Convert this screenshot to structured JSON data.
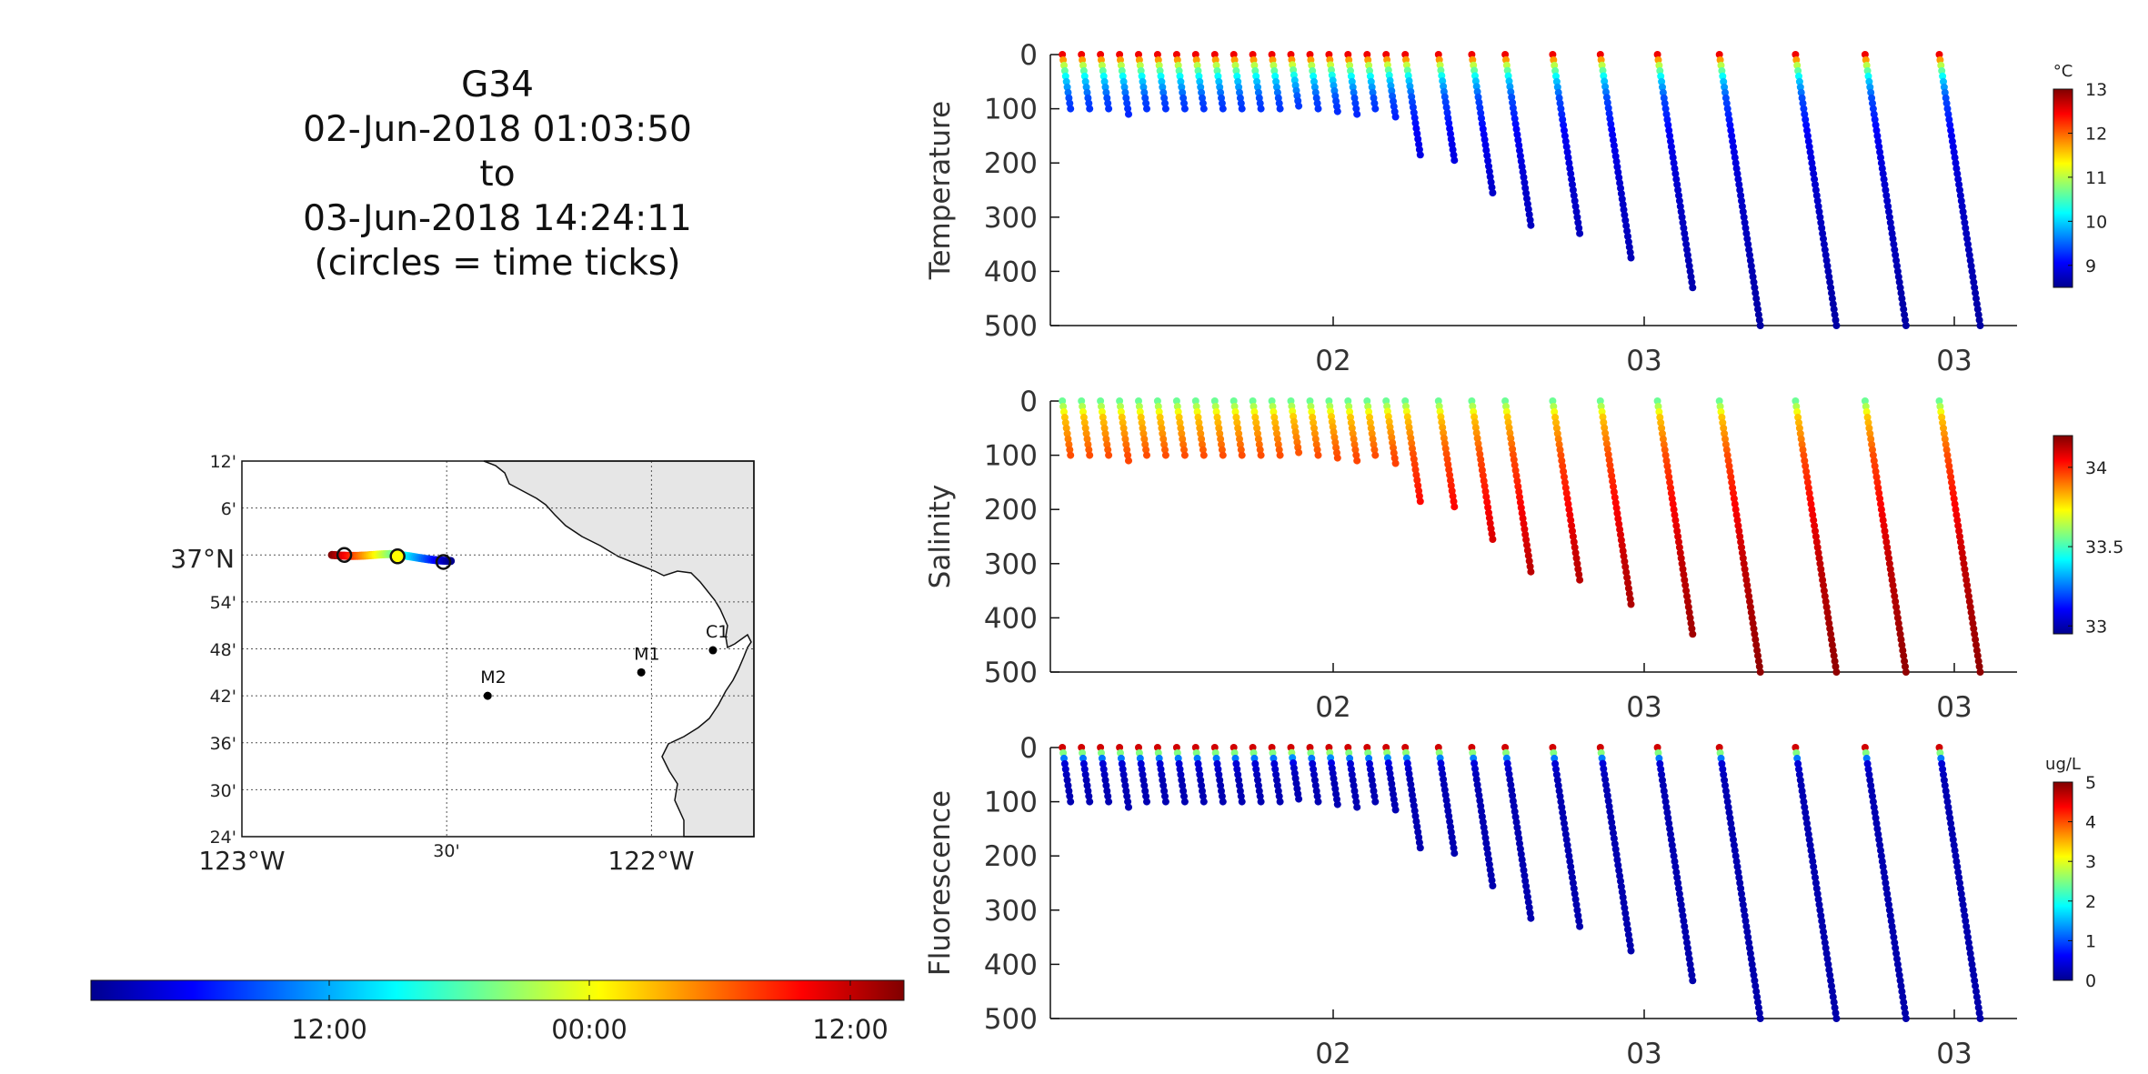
{
  "title": {
    "lines": [
      "G34",
      "02-Jun-2018 01:03:50",
      "to",
      "03-Jun-2018 14:24:11",
      "(circles = time ticks)"
    ]
  },
  "colors": {
    "jet": [
      "#00008f",
      "#0000ff",
      "#0080ff",
      "#00ffff",
      "#80ff80",
      "#ffff00",
      "#ff8000",
      "#ff0000",
      "#800000"
    ],
    "land": "#e6e6e6",
    "marker": "#000000"
  },
  "map": {
    "lat_tick_labels": [
      "12'",
      "6'",
      "37°N",
      "54'",
      "48'",
      "42'",
      "36'",
      "30'",
      "24'"
    ],
    "lon_tick_labels": [
      "123°W",
      "30'",
      "122°W"
    ],
    "lat_range": [
      36.4,
      37.2
    ],
    "lon_range": [
      -123.0,
      -121.75
    ],
    "grid": "dotted",
    "stations": [
      {
        "name": "C1",
        "lon": -121.85,
        "lat": 36.797
      },
      {
        "name": "M1",
        "lon": -122.025,
        "lat": 36.75
      },
      {
        "name": "M2",
        "lon": -122.4,
        "lat": 36.7
      }
    ],
    "time_tick_circles": [
      {
        "lon": -122.75,
        "lat": 37.0
      },
      {
        "lon": -122.62,
        "lat": 36.997
      },
      {
        "lon": -122.508,
        "lat": 36.985
      }
    ]
  },
  "time_colorbar": {
    "tick_labels": [
      "12:00",
      "00:00",
      "12:00"
    ],
    "colormap": "jet",
    "orientation": "horizontal"
  },
  "chart_data": [
    {
      "type": "scatter",
      "title": "",
      "ylabel": "Temperature",
      "xlabel": "",
      "y_reversed": true,
      "ylim": [
        0,
        500
      ],
      "y_ticks": [
        "0",
        "100",
        "200",
        "300",
        "400",
        "500"
      ],
      "x_tick_labels": [
        "02",
        "03",
        "03"
      ],
      "colorbar": {
        "unit": "°C",
        "range": [
          8.5,
          13
        ],
        "ticks": [
          "13",
          "12",
          "11",
          "10",
          "9"
        ]
      },
      "color_profile": [
        [
          0,
          12.5
        ],
        [
          20,
          11
        ],
        [
          45,
          10
        ],
        [
          80,
          9.4
        ],
        [
          150,
          9
        ],
        [
          250,
          8.8
        ],
        [
          500,
          8.6
        ]
      ]
    },
    {
      "type": "scatter",
      "title": "",
      "ylabel": "Salinity",
      "xlabel": "",
      "y_reversed": true,
      "ylim": [
        0,
        500
      ],
      "y_ticks": [
        "0",
        "100",
        "200",
        "300",
        "400",
        "500"
      ],
      "x_tick_labels": [
        "02",
        "03",
        "03"
      ],
      "colorbar": {
        "unit": "",
        "range": [
          32.95,
          34.2
        ],
        "ticks": [
          "34",
          "33.5",
          "33"
        ]
      },
      "color_profile": [
        [
          0,
          33.55
        ],
        [
          30,
          33.8
        ],
        [
          100,
          33.95
        ],
        [
          200,
          34.05
        ],
        [
          300,
          34.12
        ],
        [
          500,
          34.18
        ]
      ]
    },
    {
      "type": "scatter",
      "title": "",
      "ylabel": "Fluorescence",
      "xlabel": "",
      "y_reversed": true,
      "ylim": [
        0,
        500
      ],
      "y_ticks": [
        "0",
        "100",
        "200",
        "300",
        "400",
        "500"
      ],
      "x_tick_labels": [
        "02",
        "03",
        "03"
      ],
      "colorbar": {
        "unit": "ug/L",
        "range": [
          0,
          5
        ],
        "ticks": [
          "5",
          "4",
          "3",
          "2",
          "1",
          "0"
        ]
      },
      "color_profile": [
        [
          0,
          4.6
        ],
        [
          10,
          2.5
        ],
        [
          20,
          1.2
        ],
        [
          30,
          0.4
        ],
        [
          60,
          0.2
        ],
        [
          500,
          0.15
        ]
      ]
    }
  ],
  "profiles": [
    {
      "t": 0.005,
      "max_depth": 100
    },
    {
      "t": 0.025,
      "max_depth": 100
    },
    {
      "t": 0.045,
      "max_depth": 100
    },
    {
      "t": 0.065,
      "max_depth": 110
    },
    {
      "t": 0.085,
      "max_depth": 100
    },
    {
      "t": 0.105,
      "max_depth": 100
    },
    {
      "t": 0.125,
      "max_depth": 100
    },
    {
      "t": 0.145,
      "max_depth": 100
    },
    {
      "t": 0.165,
      "max_depth": 100
    },
    {
      "t": 0.185,
      "max_depth": 100
    },
    {
      "t": 0.205,
      "max_depth": 100
    },
    {
      "t": 0.225,
      "max_depth": 100
    },
    {
      "t": 0.245,
      "max_depth": 95
    },
    {
      "t": 0.265,
      "max_depth": 100
    },
    {
      "t": 0.285,
      "max_depth": 105
    },
    {
      "t": 0.305,
      "max_depth": 110
    },
    {
      "t": 0.325,
      "max_depth": 100
    },
    {
      "t": 0.345,
      "max_depth": 115
    },
    {
      "t": 0.365,
      "max_depth": 185
    },
    {
      "t": 0.4,
      "max_depth": 195
    },
    {
      "t": 0.435,
      "max_depth": 255
    },
    {
      "t": 0.47,
      "max_depth": 315
    },
    {
      "t": 0.52,
      "max_depth": 330
    },
    {
      "t": 0.57,
      "max_depth": 375
    },
    {
      "t": 0.63,
      "max_depth": 430
    },
    {
      "t": 0.695,
      "max_depth": 500
    },
    {
      "t": 0.775,
      "max_depth": 500
    },
    {
      "t": 0.848,
      "max_depth": 500
    },
    {
      "t": 0.926,
      "max_depth": 500
    }
  ]
}
